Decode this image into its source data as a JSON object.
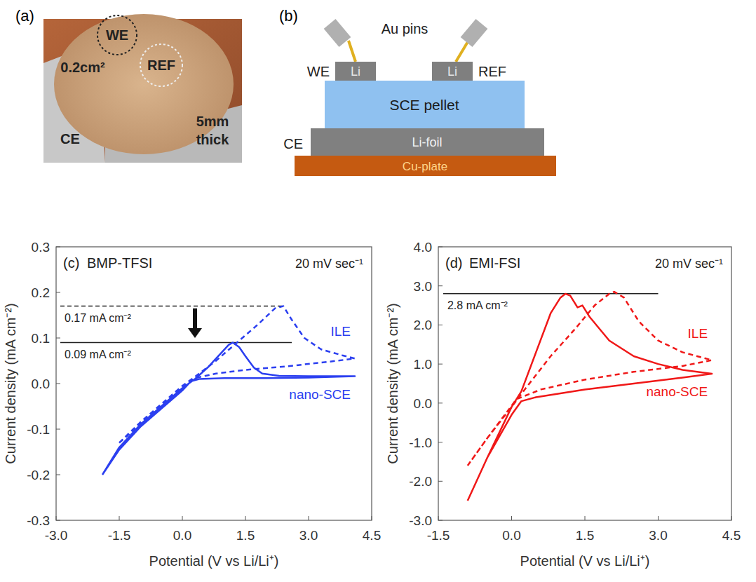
{
  "photo": {
    "panel": "(a)",
    "we": "WE",
    "ref": "REF",
    "ce": "CE",
    "area": "0.2cm²",
    "thickness": "5mm thick"
  },
  "diagram": {
    "panel": "(b)",
    "pins": "Au pins",
    "we": "WE",
    "ref": "REF",
    "ce": "CE",
    "electrode": "Li",
    "pellet": "SCE pellet",
    "foil": "Li-foil",
    "plate": "Cu-plate"
  },
  "chart_data": [
    {
      "type": "line",
      "panel": "(c)",
      "title": "BMP-TFSI",
      "subtitle": "20 mV sec⁻¹",
      "x_label": "Potential (V vs Li/Li⁺)",
      "y_label": "Current density (mA cm⁻²)",
      "xlim": [
        -3,
        4.5
      ],
      "xticks": [
        {
          "value": -3,
          "label": "-3.0"
        },
        -1.5,
        {
          "value": 0,
          "label": "0.0"
        },
        1.5,
        {
          "value": 3,
          "label": "3.0"
        },
        4.5
      ],
      "ylim": [
        -0.3,
        0.3
      ],
      "yticks": [
        -0.3,
        -0.2,
        -0.1,
        {
          "value": 0,
          "label": "0.0"
        },
        0.1,
        0.2,
        0.3
      ],
      "grid": false,
      "series": [
        {
          "name": "ILE",
          "color": "#2b3ff0",
          "line_style": "dashed",
          "x": [
            -1.5,
            -1.0,
            -0.5,
            0.0,
            0.3,
            0.8,
            1.3,
            1.8,
            2.2,
            2.4,
            2.6,
            2.9,
            3.3,
            3.8,
            4.1,
            3.5,
            2.5,
            1.5,
            0.8,
            0.3,
            0.0,
            -0.5,
            -1.0,
            -1.5
          ],
          "values": [
            -0.13,
            -0.085,
            -0.045,
            -0.005,
            0.015,
            0.05,
            0.09,
            0.13,
            0.165,
            0.17,
            0.14,
            0.1,
            0.075,
            0.062,
            0.055,
            0.048,
            0.038,
            0.03,
            0.022,
            0.012,
            -0.01,
            -0.05,
            -0.09,
            -0.13
          ]
        },
        {
          "name": "nano-SCE",
          "color": "#2b3ff0",
          "line_style": "solid",
          "x": [
            -1.9,
            -1.5,
            -1.0,
            -0.5,
            0.0,
            0.3,
            0.6,
            0.9,
            1.1,
            1.2,
            1.35,
            1.5,
            1.7,
            1.9,
            2.3,
            3.0,
            4.1,
            3.0,
            2.0,
            1.0,
            0.4,
            0.2,
            0.0,
            -0.5,
            -1.0,
            -1.5,
            -1.9
          ],
          "values": [
            -0.2,
            -0.14,
            -0.09,
            -0.05,
            -0.01,
            0.01,
            0.035,
            0.065,
            0.085,
            0.09,
            0.08,
            0.06,
            0.035,
            0.022,
            0.017,
            0.016,
            0.016,
            0.013,
            0.012,
            0.012,
            0.01,
            0.005,
            -0.015,
            -0.055,
            -0.095,
            -0.145,
            -0.2
          ]
        }
      ],
      "annotations": [
        {
          "text": "0.17 mA cm⁻²",
          "y": 0.17,
          "x0": -2.9,
          "x1": 2.4,
          "line_style": "dashed"
        },
        {
          "text": "0.09 mA cm⁻²",
          "y": 0.09,
          "x0": -2.9,
          "x1": 2.6,
          "line_style": "solid"
        }
      ],
      "arrow": {
        "x": 0.3,
        "y_from": 0.165,
        "y_to": 0.1
      }
    },
    {
      "type": "line",
      "panel": "(d)",
      "title": "EMI-FSI",
      "subtitle": "20 mV sec⁻¹",
      "x_label": "Potential (V vs Li/Li⁺)",
      "y_label": "Current density (mA cm⁻²)",
      "xlim": [
        -1.5,
        4.5
      ],
      "xticks": [
        -1.5,
        {
          "value": 0,
          "label": "0.0"
        },
        1.5,
        {
          "value": 3,
          "label": "3.0"
        },
        4.5
      ],
      "ylim": [
        -3,
        4
      ],
      "yticks": [
        {
          "value": -3,
          "label": "-3.0"
        },
        {
          "value": -2,
          "label": "-2.0"
        },
        {
          "value": -1,
          "label": "-1.0"
        },
        {
          "value": 0,
          "label": "0.0"
        },
        {
          "value": 1,
          "label": "1.0"
        },
        {
          "value": 2,
          "label": "2.0"
        },
        {
          "value": 3,
          "label": "3.0"
        },
        {
          "value": 4,
          "label": "4.0"
        }
      ],
      "grid": false,
      "series": [
        {
          "name": "ILE",
          "color": "#f01818",
          "line_style": "dashed",
          "x": [
            -0.9,
            -0.5,
            0.0,
            0.3,
            0.8,
            1.3,
            1.7,
            2.0,
            2.1,
            2.3,
            2.6,
            3.0,
            3.5,
            4.1,
            3.5,
            2.5,
            1.5,
            0.6,
            0.1,
            -0.2,
            -0.5,
            -0.9
          ],
          "values": [
            -1.6,
            -0.9,
            -0.1,
            0.4,
            1.2,
            1.9,
            2.5,
            2.8,
            2.85,
            2.7,
            2.1,
            1.6,
            1.3,
            1.1,
            0.95,
            0.8,
            0.6,
            0.35,
            0.1,
            -0.4,
            -0.9,
            -1.6
          ]
        },
        {
          "name": "nano-SCE",
          "color": "#f01818",
          "line_style": "solid",
          "x": [
            -0.9,
            -0.5,
            0.0,
            0.2,
            0.5,
            0.8,
            1.0,
            1.1,
            1.2,
            1.35,
            1.45,
            1.6,
            2.0,
            2.5,
            3.0,
            3.5,
            4.1,
            3.5,
            2.5,
            1.5,
            0.5,
            0.2,
            0.0,
            -0.5,
            -0.9
          ],
          "values": [
            -2.5,
            -1.4,
            -0.1,
            0.3,
            1.3,
            2.3,
            2.7,
            2.8,
            2.75,
            2.45,
            2.5,
            2.2,
            1.6,
            1.2,
            1.0,
            0.85,
            0.75,
            0.65,
            0.5,
            0.35,
            0.15,
            0.05,
            -0.3,
            -1.4,
            -2.5
          ]
        }
      ],
      "annotations": [
        {
          "text": "2.8 mA cm⁻²",
          "y": 2.8,
          "x0": -1.4,
          "x1": 3.0,
          "line_style": "solid"
        }
      ]
    }
  ]
}
